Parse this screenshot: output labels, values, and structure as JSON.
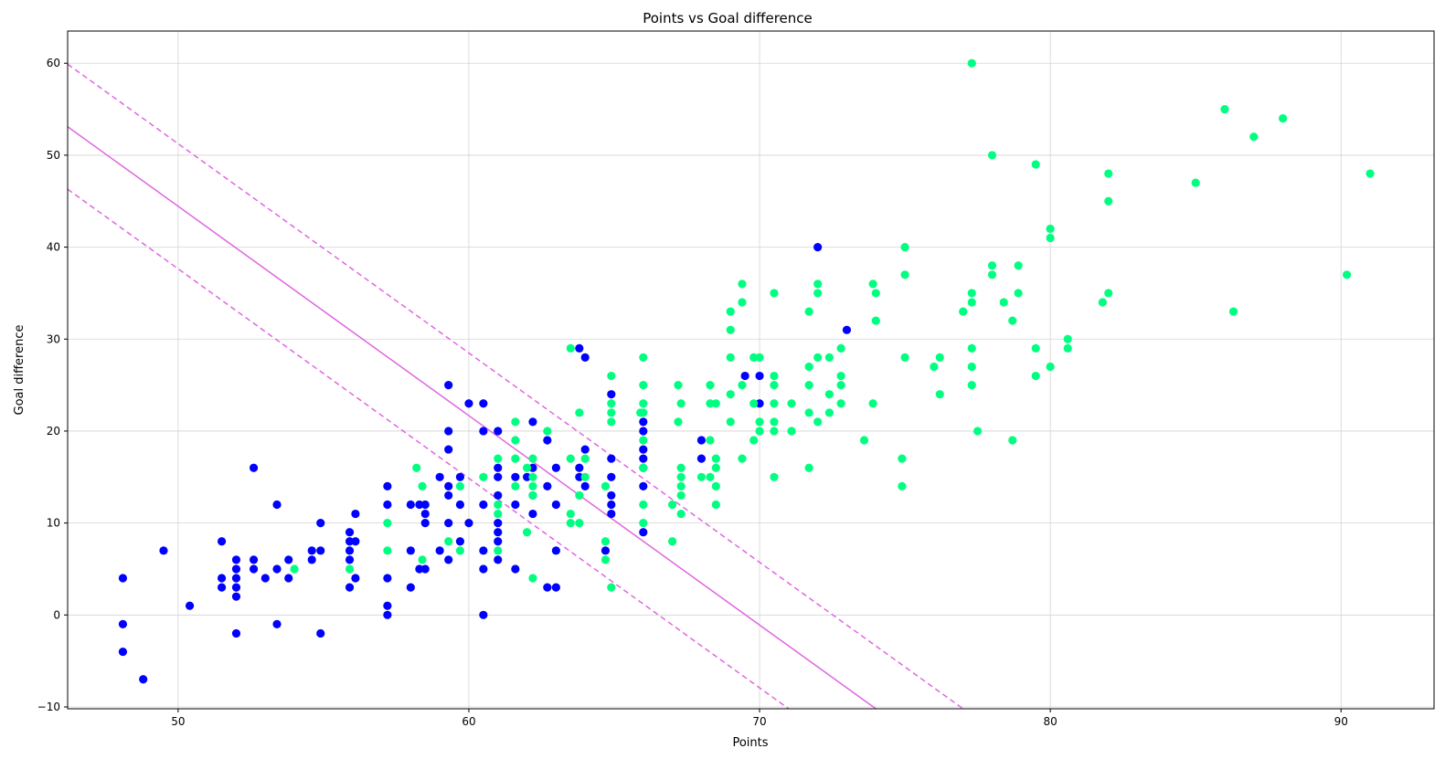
{
  "chart_data": {
    "type": "scatter",
    "title": "Points vs Goal difference",
    "xlabel": "Points",
    "ylabel": "Goal difference",
    "xlim": [
      46.2,
      93.2
    ],
    "ylim": [
      -10.2,
      63.5
    ],
    "xticks": [
      50,
      60,
      70,
      80,
      90
    ],
    "yticks": [
      -10,
      0,
      10,
      20,
      30,
      40,
      50,
      60
    ],
    "grid": true,
    "colors": {
      "class0": "#0000ff",
      "class1": "#00ff80",
      "line": "#e066e0"
    },
    "series": [
      {
        "class": 0,
        "color": "#0000ff",
        "points": [
          [
            48.1,
            4
          ],
          [
            48.1,
            -1
          ],
          [
            48.1,
            -4
          ],
          [
            48.8,
            -7
          ],
          [
            49.5,
            7
          ],
          [
            50.4,
            1
          ],
          [
            51.5,
            8
          ],
          [
            51.5,
            4
          ],
          [
            51.5,
            3
          ],
          [
            52,
            6
          ],
          [
            52,
            5
          ],
          [
            52,
            4
          ],
          [
            52,
            3
          ],
          [
            52,
            2
          ],
          [
            52,
            -2
          ],
          [
            52.6,
            16
          ],
          [
            52.6,
            6
          ],
          [
            52.6,
            5
          ],
          [
            53,
            4
          ],
          [
            53.4,
            12
          ],
          [
            53.4,
            5
          ],
          [
            53.4,
            -1
          ],
          [
            53.8,
            6
          ],
          [
            53.8,
            4
          ],
          [
            54.6,
            7
          ],
          [
            54.6,
            6
          ],
          [
            54.9,
            10
          ],
          [
            54.9,
            7
          ],
          [
            54.9,
            -2
          ],
          [
            55.9,
            9
          ],
          [
            55.9,
            8
          ],
          [
            55.9,
            7
          ],
          [
            55.9,
            6
          ],
          [
            55.9,
            3
          ],
          [
            56.1,
            11
          ],
          [
            56.1,
            8
          ],
          [
            56.1,
            4
          ],
          [
            57.2,
            14
          ],
          [
            57.2,
            12
          ],
          [
            57.2,
            4
          ],
          [
            57.2,
            1
          ],
          [
            57.2,
            0
          ],
          [
            58,
            12
          ],
          [
            58,
            7
          ],
          [
            58,
            3
          ],
          [
            58.3,
            12
          ],
          [
            58.3,
            5
          ],
          [
            58.5,
            12
          ],
          [
            58.5,
            11
          ],
          [
            58.5,
            10
          ],
          [
            58.5,
            5
          ],
          [
            59,
            15
          ],
          [
            59,
            7
          ],
          [
            59.3,
            25
          ],
          [
            59.3,
            20
          ],
          [
            59.3,
            18
          ],
          [
            59.3,
            14
          ],
          [
            59.3,
            13
          ],
          [
            59.3,
            10
          ],
          [
            59.3,
            6
          ],
          [
            59.7,
            15
          ],
          [
            59.7,
            12
          ],
          [
            59.7,
            8
          ],
          [
            60,
            23
          ],
          [
            60,
            10
          ],
          [
            60.5,
            23
          ],
          [
            60.5,
            20
          ],
          [
            60.5,
            12
          ],
          [
            60.5,
            7
          ],
          [
            60.5,
            5
          ],
          [
            60.5,
            0
          ],
          [
            61,
            20
          ],
          [
            61,
            16
          ],
          [
            61,
            15
          ],
          [
            61,
            13
          ],
          [
            61,
            10
          ],
          [
            61,
            9
          ],
          [
            61,
            8
          ],
          [
            61,
            6
          ],
          [
            61.6,
            15
          ],
          [
            61.6,
            12
          ],
          [
            61.6,
            5
          ],
          [
            62,
            15
          ],
          [
            62.2,
            21
          ],
          [
            62.2,
            16
          ],
          [
            62.2,
            11
          ],
          [
            62.2,
            13
          ],
          [
            62.7,
            19
          ],
          [
            62.7,
            14
          ],
          [
            62.7,
            3
          ],
          [
            63,
            16
          ],
          [
            63,
            12
          ],
          [
            63,
            7
          ],
          [
            63,
            3
          ],
          [
            63.8,
            29
          ],
          [
            63.8,
            16
          ],
          [
            63.8,
            15
          ],
          [
            64,
            28
          ],
          [
            64,
            18
          ],
          [
            64,
            14
          ],
          [
            64.7,
            7
          ],
          [
            64.9,
            24
          ],
          [
            64.9,
            17
          ],
          [
            64.9,
            15
          ],
          [
            64.9,
            13
          ],
          [
            64.9,
            12
          ],
          [
            64.9,
            11
          ],
          [
            66,
            21
          ],
          [
            66,
            20
          ],
          [
            66,
            18
          ],
          [
            66,
            17
          ],
          [
            66,
            16
          ],
          [
            66,
            14
          ],
          [
            66,
            9
          ],
          [
            68,
            19
          ],
          [
            68,
            17
          ],
          [
            69.5,
            26
          ],
          [
            70,
            26
          ],
          [
            70,
            23
          ],
          [
            72,
            40
          ],
          [
            73,
            31
          ]
        ]
      },
      {
        "class": 1,
        "color": "#00ff80",
        "points": [
          [
            54,
            5
          ],
          [
            55.9,
            5
          ],
          [
            57.2,
            10
          ],
          [
            57.2,
            7
          ],
          [
            58.2,
            16
          ],
          [
            58.4,
            14
          ],
          [
            58.4,
            6
          ],
          [
            59.3,
            8
          ],
          [
            59.7,
            14
          ],
          [
            59.7,
            7
          ],
          [
            60.5,
            15
          ],
          [
            61,
            17
          ],
          [
            61,
            12
          ],
          [
            61,
            11
          ],
          [
            61,
            7
          ],
          [
            61.6,
            21
          ],
          [
            61.6,
            19
          ],
          [
            61.6,
            17
          ],
          [
            61.6,
            14
          ],
          [
            62,
            9
          ],
          [
            62,
            16
          ],
          [
            62.2,
            17
          ],
          [
            62.2,
            15
          ],
          [
            62.2,
            14
          ],
          [
            62.2,
            13
          ],
          [
            62.2,
            4
          ],
          [
            62.7,
            20
          ],
          [
            63.5,
            29
          ],
          [
            63.5,
            17
          ],
          [
            63.5,
            11
          ],
          [
            63.5,
            10
          ],
          [
            63.8,
            22
          ],
          [
            63.8,
            13
          ],
          [
            63.8,
            10
          ],
          [
            64,
            17
          ],
          [
            64,
            15
          ],
          [
            64.7,
            14
          ],
          [
            64.7,
            8
          ],
          [
            64.7,
            6
          ],
          [
            64.9,
            26
          ],
          [
            64.9,
            23
          ],
          [
            64.9,
            22
          ],
          [
            64.9,
            21
          ],
          [
            64.9,
            3
          ],
          [
            65.9,
            22
          ],
          [
            66,
            28
          ],
          [
            66,
            25
          ],
          [
            66,
            23
          ],
          [
            66,
            22
          ],
          [
            66,
            19
          ],
          [
            66,
            16
          ],
          [
            66,
            12
          ],
          [
            66,
            10
          ],
          [
            67,
            12
          ],
          [
            67,
            8
          ],
          [
            67.2,
            25
          ],
          [
            67.2,
            21
          ],
          [
            67.3,
            23
          ],
          [
            67.3,
            16
          ],
          [
            67.3,
            15
          ],
          [
            67.3,
            14
          ],
          [
            67.3,
            13
          ],
          [
            67.3,
            11
          ],
          [
            68,
            15
          ],
          [
            68.3,
            25
          ],
          [
            68.3,
            23
          ],
          [
            68.3,
            19
          ],
          [
            68.3,
            15
          ],
          [
            68.5,
            23
          ],
          [
            68.5,
            17
          ],
          [
            68.5,
            16
          ],
          [
            68.5,
            14
          ],
          [
            68.5,
            12
          ],
          [
            69,
            33
          ],
          [
            69,
            31
          ],
          [
            69,
            28
          ],
          [
            69,
            24
          ],
          [
            69,
            21
          ],
          [
            69.4,
            36
          ],
          [
            69.4,
            34
          ],
          [
            69.4,
            25
          ],
          [
            69.4,
            17
          ],
          [
            69.8,
            28
          ],
          [
            69.8,
            23
          ],
          [
            69.8,
            19
          ],
          [
            70,
            28
          ],
          [
            70,
            21
          ],
          [
            70,
            20
          ],
          [
            70.5,
            35
          ],
          [
            70.5,
            26
          ],
          [
            70.5,
            25
          ],
          [
            70.5,
            23
          ],
          [
            70.5,
            21
          ],
          [
            70.5,
            20
          ],
          [
            70.5,
            15
          ],
          [
            71.1,
            23
          ],
          [
            71.1,
            20
          ],
          [
            71.7,
            33
          ],
          [
            71.7,
            27
          ],
          [
            71.7,
            25
          ],
          [
            71.7,
            22
          ],
          [
            71.7,
            16
          ],
          [
            72,
            36
          ],
          [
            72,
            35
          ],
          [
            72,
            28
          ],
          [
            72,
            21
          ],
          [
            72.4,
            28
          ],
          [
            72.4,
            24
          ],
          [
            72.4,
            22
          ],
          [
            72.8,
            29
          ],
          [
            72.8,
            26
          ],
          [
            72.8,
            25
          ],
          [
            72.8,
            23
          ],
          [
            73.6,
            19
          ],
          [
            73.9,
            36
          ],
          [
            74,
            35
          ],
          [
            74,
            32
          ],
          [
            73.9,
            23
          ],
          [
            75,
            40
          ],
          [
            75,
            37
          ],
          [
            75,
            28
          ],
          [
            74.9,
            17
          ],
          [
            74.9,
            14
          ],
          [
            76,
            27
          ],
          [
            76.2,
            28
          ],
          [
            76.2,
            24
          ],
          [
            77,
            33
          ],
          [
            77.3,
            60
          ],
          [
            77.3,
            35
          ],
          [
            77.3,
            34
          ],
          [
            77.3,
            29
          ],
          [
            77.3,
            27
          ],
          [
            77.3,
            25
          ],
          [
            77.5,
            20
          ],
          [
            78,
            50
          ],
          [
            78,
            38
          ],
          [
            78,
            37
          ],
          [
            78.4,
            34
          ],
          [
            78.7,
            32
          ],
          [
            78.7,
            19
          ],
          [
            78.9,
            38
          ],
          [
            78.9,
            35
          ],
          [
            79.5,
            49
          ],
          [
            79.5,
            29
          ],
          [
            79.5,
            26
          ],
          [
            80,
            42
          ],
          [
            80,
            41
          ],
          [
            80,
            27
          ],
          [
            80.6,
            30
          ],
          [
            80.6,
            29
          ],
          [
            81.8,
            34
          ],
          [
            82,
            48
          ],
          [
            82,
            45
          ],
          [
            82,
            35
          ],
          [
            85,
            47
          ],
          [
            86,
            55
          ],
          [
            86.3,
            33
          ],
          [
            87,
            52
          ],
          [
            88,
            54
          ],
          [
            90.2,
            37
          ],
          [
            91,
            48
          ]
        ]
      }
    ],
    "decision_lines": [
      {
        "style": "solid",
        "x": [
          46.2,
          74.0
        ],
        "y": [
          53.1,
          -10.2
        ]
      },
      {
        "style": "dashed",
        "x": [
          46.2,
          77.0
        ],
        "y": [
          59.9,
          -10.2
        ]
      },
      {
        "style": "dashed",
        "x": [
          46.2,
          71.0
        ],
        "y": [
          46.3,
          -10.2
        ]
      }
    ]
  }
}
